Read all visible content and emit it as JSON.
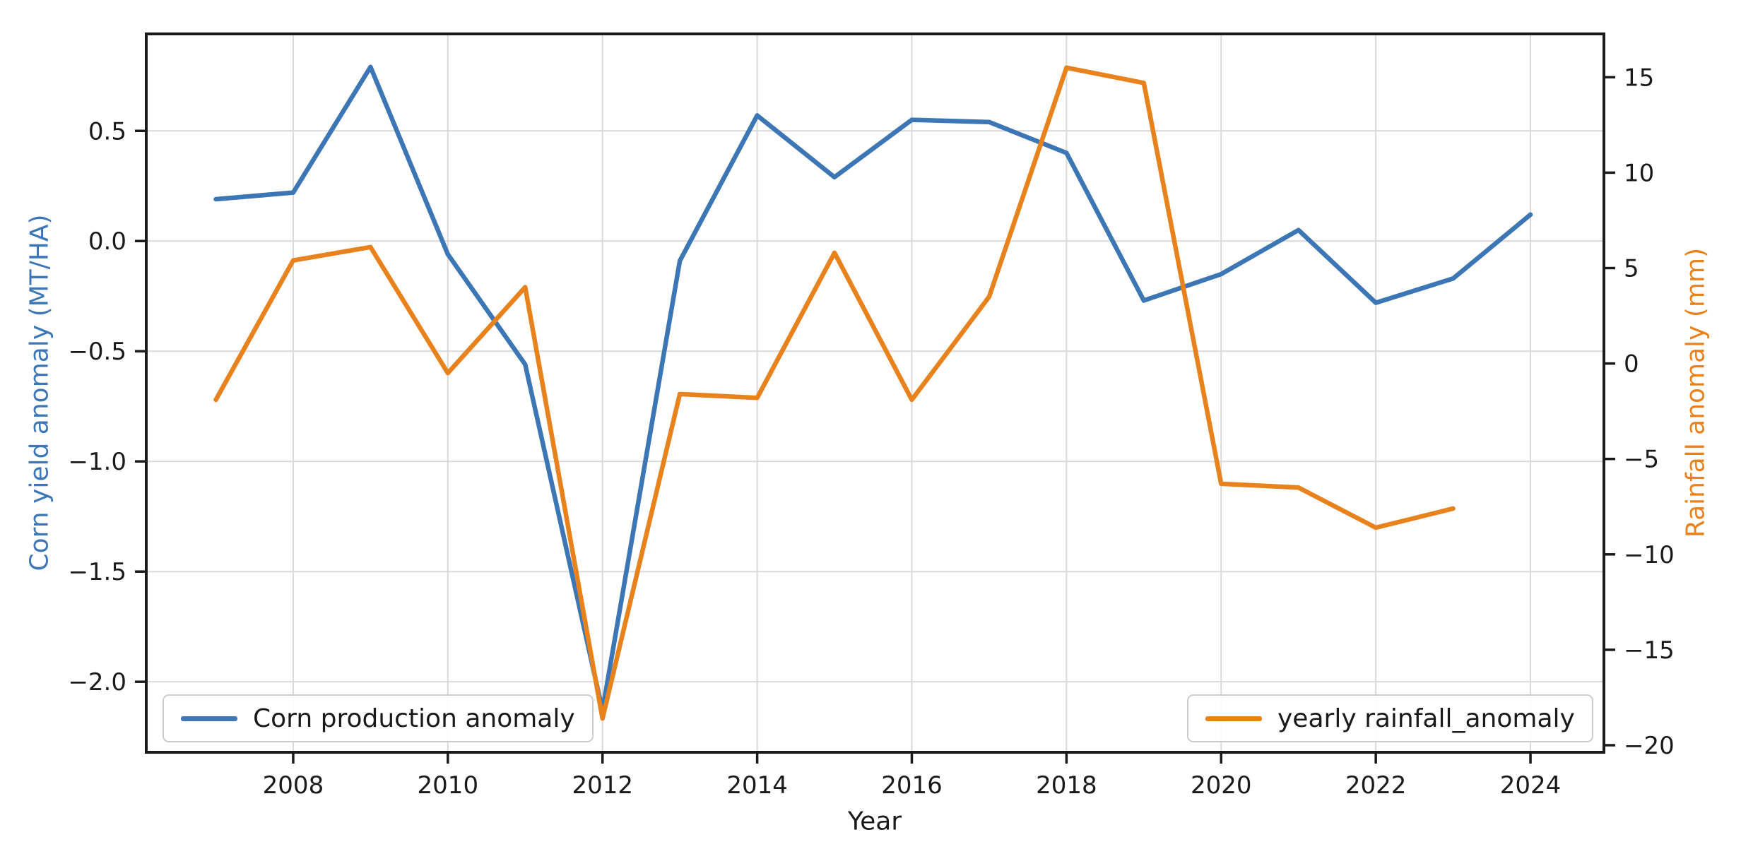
{
  "figure": {
    "background": "#ffffff",
    "text_color": "#1a1a1a",
    "grid_color": "#d9d9d9",
    "spine_color": "#1a1a1a"
  },
  "chart_data": {
    "type": "line",
    "title": "",
    "xlabel": "Year",
    "ylabel_left": "Corn yield anomaly (MT/HA)",
    "ylabel_right": "Rainfall anomaly (mm)",
    "x_ticks": [
      2008,
      2010,
      2012,
      2014,
      2016,
      2018,
      2020,
      2022,
      2024
    ],
    "y_ticks_left": [
      0.5,
      0.0,
      -0.5,
      -1.0,
      -1.5,
      -2.0
    ],
    "y_ticks_right": [
      15,
      10,
      5,
      0,
      -5,
      -10,
      -15,
      -20
    ],
    "xlim": [
      2006.1,
      2024.95
    ],
    "ylim_left": [
      -2.32,
      0.94
    ],
    "ylim_right": [
      -20.37,
      17.27
    ],
    "grid": true,
    "legend_position": [
      "lower left",
      "lower right"
    ],
    "series": [
      {
        "name": "Corn production anomaly",
        "axis": "left",
        "color": "#3d76b4",
        "x": [
          2007,
          2008,
          2009,
          2010,
          2011,
          2012,
          2013,
          2014,
          2015,
          2016,
          2017,
          2018,
          2019,
          2020,
          2021,
          2022,
          2023,
          2024
        ],
        "values": [
          0.19,
          0.22,
          0.79,
          -0.06,
          -0.56,
          -2.13,
          -0.09,
          0.57,
          0.29,
          0.55,
          0.54,
          0.4,
          -0.27,
          -0.15,
          0.05,
          -0.28,
          -0.17,
          0.12
        ]
      },
      {
        "name": "yearly rainfall_anomaly",
        "axis": "right",
        "color": "#e8821d",
        "x": [
          2007,
          2008,
          2009,
          2010,
          2011,
          2012,
          2013,
          2014,
          2015,
          2016,
          2017,
          2018,
          2019,
          2020,
          2021,
          2022,
          2023
        ],
        "values": [
          -1.9,
          5.4,
          6.1,
          -0.5,
          4.0,
          -18.6,
          -1.6,
          -1.8,
          5.8,
          -1.9,
          3.5,
          15.5,
          14.7,
          -6.3,
          -6.5,
          -8.6,
          -7.6
        ]
      }
    ]
  }
}
